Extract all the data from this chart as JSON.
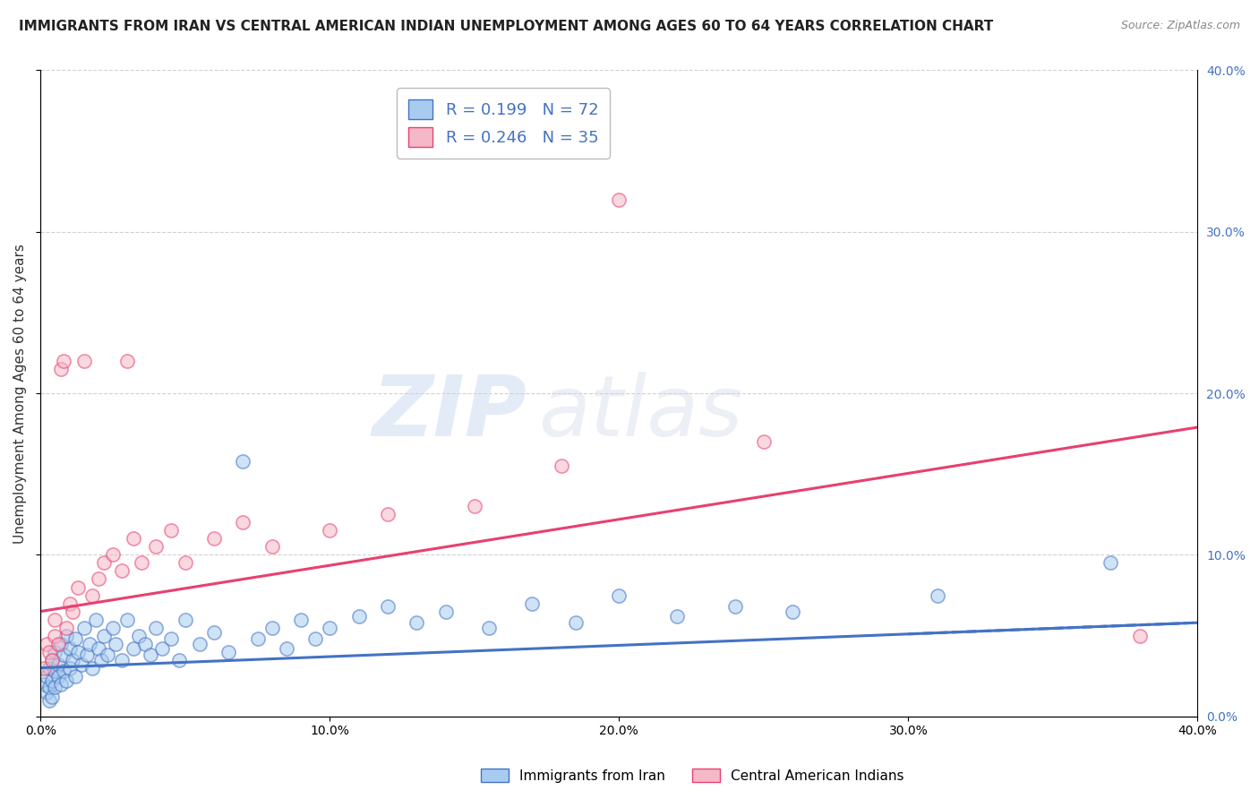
{
  "title": "IMMIGRANTS FROM IRAN VS CENTRAL AMERICAN INDIAN UNEMPLOYMENT AMONG AGES 60 TO 64 YEARS CORRELATION CHART",
  "source": "Source: ZipAtlas.com",
  "ylabel": "Unemployment Among Ages 60 to 64 years",
  "xlabel": "",
  "xlim": [
    0.0,
    0.4
  ],
  "ylim": [
    0.0,
    0.4
  ],
  "xticks": [
    0.0,
    0.1,
    0.2,
    0.3,
    0.4
  ],
  "yticks_right": [
    0.0,
    0.1,
    0.2,
    0.3,
    0.4
  ],
  "ytick_labels_right": [
    "0.0%",
    "10.0%",
    "20.0%",
    "30.0%",
    "40.0%"
  ],
  "xtick_labels": [
    "0.0%",
    "10.0%",
    "20.0%",
    "30.0%",
    "40.0%"
  ],
  "blue_color": "#A8CCF0",
  "pink_color": "#F5B8C8",
  "blue_line_color": "#4472C4",
  "pink_line_color": "#E84070",
  "R_blue": 0.199,
  "N_blue": 72,
  "R_pink": 0.246,
  "N_pink": 35,
  "legend_label_blue": "Immigrants from Iran",
  "legend_label_pink": "Central American Indians",
  "watermark_zip": "ZIP",
  "watermark_atlas": "atlas",
  "background_color": "#FFFFFF",
  "grid_color": "#CCCCCC",
  "title_fontsize": 11,
  "label_fontsize": 11,
  "tick_fontsize": 10,
  "blue_line_intercept": 0.03,
  "blue_line_slope": 0.07,
  "pink_line_intercept": 0.065,
  "pink_line_slope": 0.285,
  "blue_x": [
    0.001,
    0.002,
    0.002,
    0.003,
    0.003,
    0.003,
    0.004,
    0.004,
    0.004,
    0.005,
    0.005,
    0.005,
    0.006,
    0.006,
    0.007,
    0.007,
    0.008,
    0.008,
    0.009,
    0.009,
    0.01,
    0.01,
    0.011,
    0.012,
    0.012,
    0.013,
    0.014,
    0.015,
    0.016,
    0.017,
    0.018,
    0.019,
    0.02,
    0.021,
    0.022,
    0.023,
    0.025,
    0.026,
    0.028,
    0.03,
    0.032,
    0.034,
    0.036,
    0.038,
    0.04,
    0.042,
    0.045,
    0.048,
    0.05,
    0.055,
    0.06,
    0.065,
    0.07,
    0.075,
    0.08,
    0.085,
    0.09,
    0.095,
    0.1,
    0.11,
    0.12,
    0.13,
    0.14,
    0.155,
    0.17,
    0.185,
    0.2,
    0.22,
    0.24,
    0.26,
    0.31,
    0.37
  ],
  "blue_y": [
    0.02,
    0.015,
    0.025,
    0.018,
    0.03,
    0.01,
    0.022,
    0.035,
    0.012,
    0.028,
    0.04,
    0.018,
    0.032,
    0.025,
    0.045,
    0.02,
    0.038,
    0.028,
    0.05,
    0.022,
    0.042,
    0.03,
    0.035,
    0.048,
    0.025,
    0.04,
    0.032,
    0.055,
    0.038,
    0.045,
    0.03,
    0.06,
    0.042,
    0.035,
    0.05,
    0.038,
    0.055,
    0.045,
    0.035,
    0.06,
    0.042,
    0.05,
    0.045,
    0.038,
    0.055,
    0.042,
    0.048,
    0.035,
    0.06,
    0.045,
    0.052,
    0.04,
    0.158,
    0.048,
    0.055,
    0.042,
    0.06,
    0.048,
    0.055,
    0.062,
    0.068,
    0.058,
    0.065,
    0.055,
    0.07,
    0.058,
    0.075,
    0.062,
    0.068,
    0.065,
    0.075,
    0.095
  ],
  "pink_x": [
    0.001,
    0.002,
    0.003,
    0.004,
    0.005,
    0.005,
    0.006,
    0.007,
    0.008,
    0.009,
    0.01,
    0.011,
    0.013,
    0.015,
    0.018,
    0.02,
    0.022,
    0.025,
    0.028,
    0.03,
    0.032,
    0.035,
    0.04,
    0.045,
    0.05,
    0.06,
    0.07,
    0.08,
    0.1,
    0.12,
    0.15,
    0.18,
    0.2,
    0.25,
    0.38
  ],
  "pink_y": [
    0.03,
    0.045,
    0.04,
    0.035,
    0.05,
    0.06,
    0.045,
    0.215,
    0.22,
    0.055,
    0.07,
    0.065,
    0.08,
    0.22,
    0.075,
    0.085,
    0.095,
    0.1,
    0.09,
    0.22,
    0.11,
    0.095,
    0.105,
    0.115,
    0.095,
    0.11,
    0.12,
    0.105,
    0.115,
    0.125,
    0.13,
    0.155,
    0.32,
    0.17,
    0.05
  ]
}
